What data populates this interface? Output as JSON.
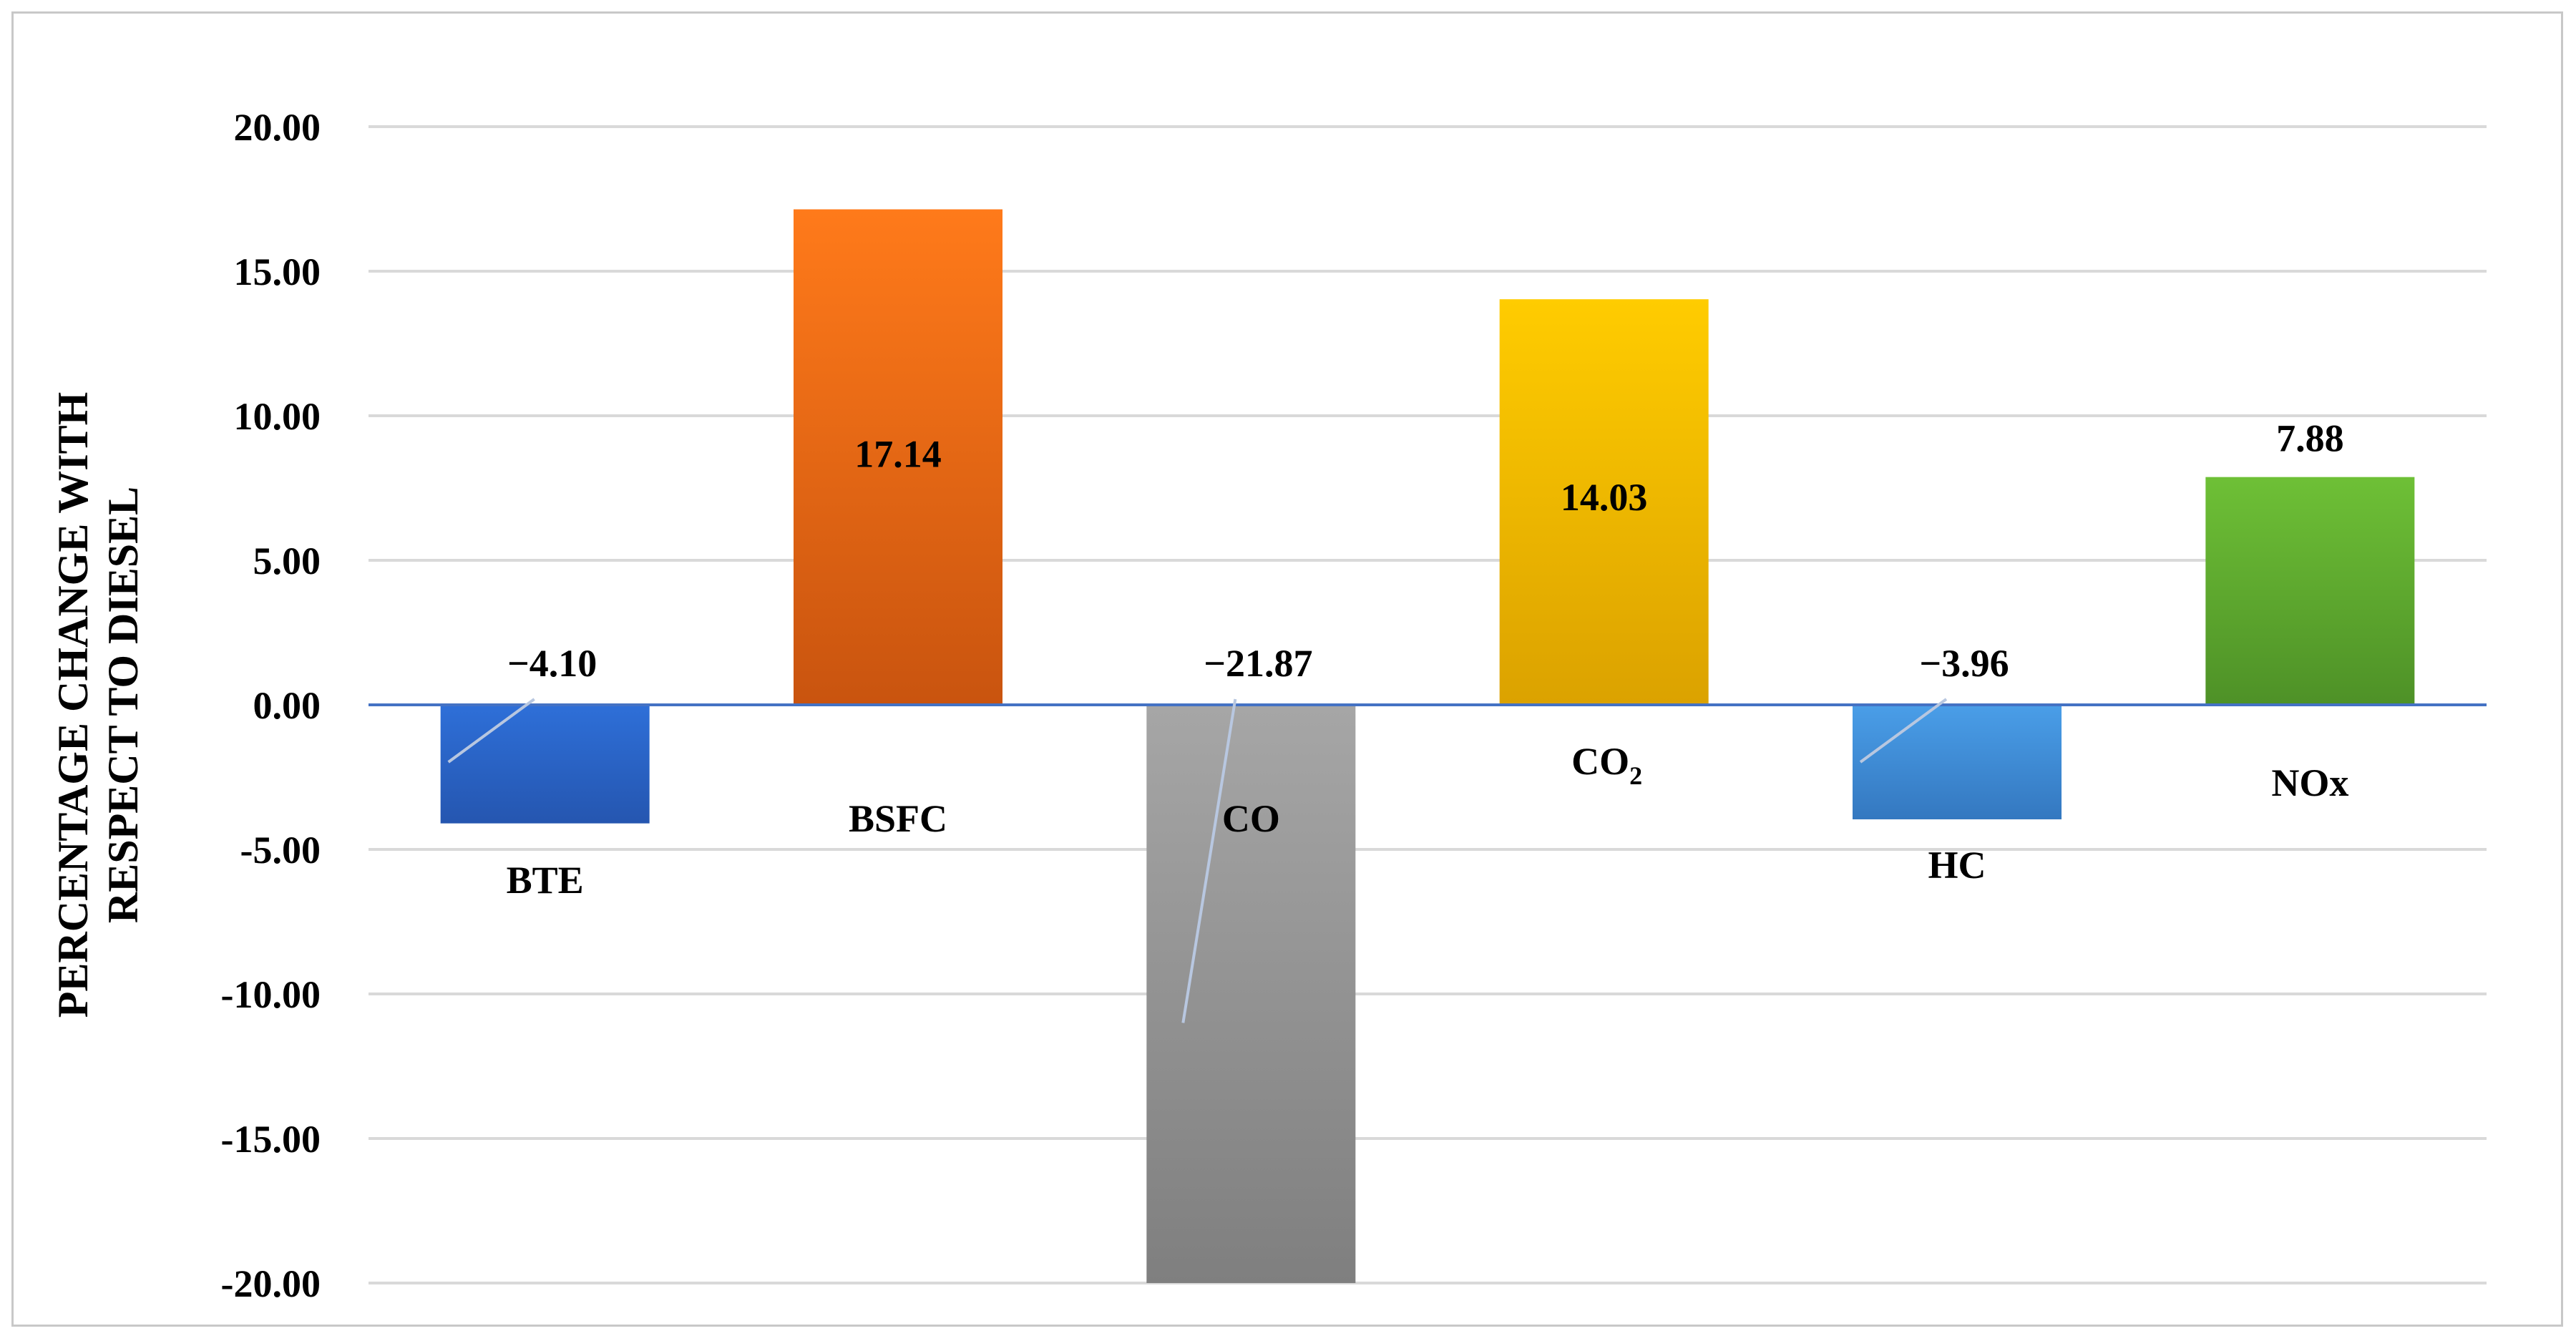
{
  "chart_data": {
    "type": "bar",
    "title": "",
    "xlabel": "",
    "ylabel": "PERCENTAGE CHANGE WITH RESPECT TO DIESEL",
    "ylabel_lines": [
      "PERCENTAGE CHANGE WITH",
      "RESPECT TO DIESEL"
    ],
    "ylim": [
      -20,
      20
    ],
    "yticks": [
      20,
      15,
      10,
      5,
      0,
      -5,
      -10,
      -15,
      -20
    ],
    "ytick_labels": [
      "20.00",
      "15.00",
      "10.00",
      "5.00",
      "0.00",
      "-5.00",
      "-10.00",
      "-15.00",
      "-20.00"
    ],
    "grid": true,
    "categories": [
      "BTE",
      "BSFC",
      "CO",
      "CO2",
      "HC",
      "NOx"
    ],
    "category_labels": [
      {
        "main": "BTE",
        "sub": ""
      },
      {
        "main": "BSFC",
        "sub": ""
      },
      {
        "main": "CO",
        "sub": ""
      },
      {
        "main": "CO",
        "sub": "2"
      },
      {
        "main": "HC",
        "sub": ""
      },
      {
        "main": "NOx",
        "sub": ""
      }
    ],
    "values": [
      -4.1,
      17.14,
      -21.87,
      14.03,
      -3.96,
      7.88
    ],
    "data_labels": [
      "−4.10",
      "17.14",
      "−21.87",
      "14.03",
      "−3.96",
      "7.88"
    ],
    "colors": [
      [
        "#2e6fd8",
        "#2556b0"
      ],
      [
        "#ff7a1a",
        "#c9540f"
      ],
      [
        "#a6a6a6",
        "#7f7f7f"
      ],
      [
        "#ffcc00",
        "#dba200"
      ],
      [
        "#4a9ee8",
        "#3478c0"
      ],
      [
        "#6ec036",
        "#4e9127"
      ]
    ],
    "zero_line_color": "#4472c4",
    "grid_color": "#d9d9d9"
  }
}
